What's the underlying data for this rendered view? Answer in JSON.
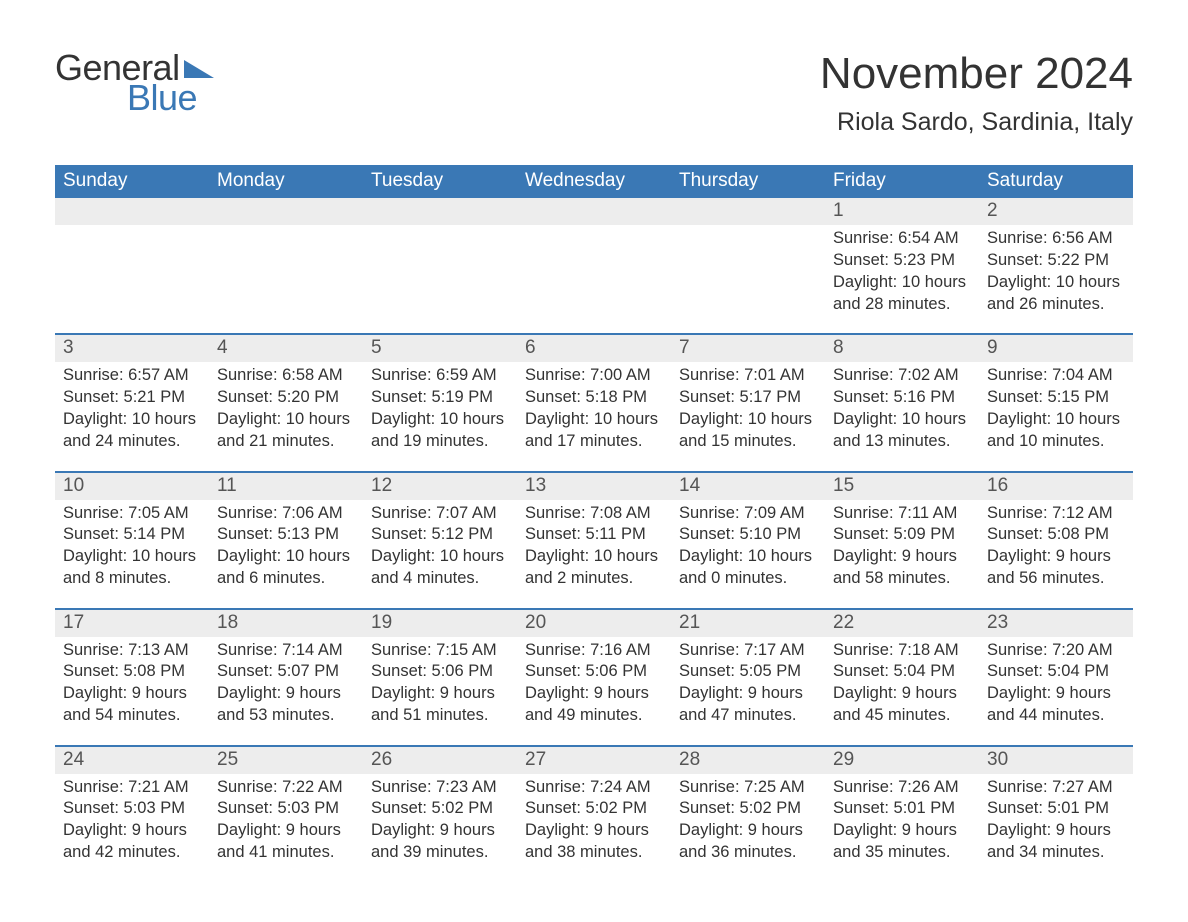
{
  "brand": {
    "name_part1": "General",
    "name_part2": "Blue",
    "accent_color": "#3a78b5",
    "text_color": "#333333"
  },
  "header": {
    "month_title": "November 2024",
    "location": "Riola Sardo, Sardinia, Italy"
  },
  "calendar": {
    "type": "table",
    "background_color": "#ffffff",
    "header_bg": "#3a78b5",
    "header_text_color": "#ffffff",
    "daynum_band_bg": "#ededed",
    "row_divider_color": "#3a78b5",
    "body_text_color": "#333333",
    "weekday_fontsize": 19,
    "daynum_fontsize": 19,
    "body_fontsize": 16.5,
    "columns": [
      "Sunday",
      "Monday",
      "Tuesday",
      "Wednesday",
      "Thursday",
      "Friday",
      "Saturday"
    ],
    "weeks": [
      [
        null,
        null,
        null,
        null,
        null,
        {
          "n": "1",
          "sr": "Sunrise: 6:54 AM",
          "ss": "Sunset: 5:23 PM",
          "d1": "Daylight: 10 hours",
          "d2": "and 28 minutes."
        },
        {
          "n": "2",
          "sr": "Sunrise: 6:56 AM",
          "ss": "Sunset: 5:22 PM",
          "d1": "Daylight: 10 hours",
          "d2": "and 26 minutes."
        }
      ],
      [
        {
          "n": "3",
          "sr": "Sunrise: 6:57 AM",
          "ss": "Sunset: 5:21 PM",
          "d1": "Daylight: 10 hours",
          "d2": "and 24 minutes."
        },
        {
          "n": "4",
          "sr": "Sunrise: 6:58 AM",
          "ss": "Sunset: 5:20 PM",
          "d1": "Daylight: 10 hours",
          "d2": "and 21 minutes."
        },
        {
          "n": "5",
          "sr": "Sunrise: 6:59 AM",
          "ss": "Sunset: 5:19 PM",
          "d1": "Daylight: 10 hours",
          "d2": "and 19 minutes."
        },
        {
          "n": "6",
          "sr": "Sunrise: 7:00 AM",
          "ss": "Sunset: 5:18 PM",
          "d1": "Daylight: 10 hours",
          "d2": "and 17 minutes."
        },
        {
          "n": "7",
          "sr": "Sunrise: 7:01 AM",
          "ss": "Sunset: 5:17 PM",
          "d1": "Daylight: 10 hours",
          "d2": "and 15 minutes."
        },
        {
          "n": "8",
          "sr": "Sunrise: 7:02 AM",
          "ss": "Sunset: 5:16 PM",
          "d1": "Daylight: 10 hours",
          "d2": "and 13 minutes."
        },
        {
          "n": "9",
          "sr": "Sunrise: 7:04 AM",
          "ss": "Sunset: 5:15 PM",
          "d1": "Daylight: 10 hours",
          "d2": "and 10 minutes."
        }
      ],
      [
        {
          "n": "10",
          "sr": "Sunrise: 7:05 AM",
          "ss": "Sunset: 5:14 PM",
          "d1": "Daylight: 10 hours",
          "d2": "and 8 minutes."
        },
        {
          "n": "11",
          "sr": "Sunrise: 7:06 AM",
          "ss": "Sunset: 5:13 PM",
          "d1": "Daylight: 10 hours",
          "d2": "and 6 minutes."
        },
        {
          "n": "12",
          "sr": "Sunrise: 7:07 AM",
          "ss": "Sunset: 5:12 PM",
          "d1": "Daylight: 10 hours",
          "d2": "and 4 minutes."
        },
        {
          "n": "13",
          "sr": "Sunrise: 7:08 AM",
          "ss": "Sunset: 5:11 PM",
          "d1": "Daylight: 10 hours",
          "d2": "and 2 minutes."
        },
        {
          "n": "14",
          "sr": "Sunrise: 7:09 AM",
          "ss": "Sunset: 5:10 PM",
          "d1": "Daylight: 10 hours",
          "d2": "and 0 minutes."
        },
        {
          "n": "15",
          "sr": "Sunrise: 7:11 AM",
          "ss": "Sunset: 5:09 PM",
          "d1": "Daylight: 9 hours",
          "d2": "and 58 minutes."
        },
        {
          "n": "16",
          "sr": "Sunrise: 7:12 AM",
          "ss": "Sunset: 5:08 PM",
          "d1": "Daylight: 9 hours",
          "d2": "and 56 minutes."
        }
      ],
      [
        {
          "n": "17",
          "sr": "Sunrise: 7:13 AM",
          "ss": "Sunset: 5:08 PM",
          "d1": "Daylight: 9 hours",
          "d2": "and 54 minutes."
        },
        {
          "n": "18",
          "sr": "Sunrise: 7:14 AM",
          "ss": "Sunset: 5:07 PM",
          "d1": "Daylight: 9 hours",
          "d2": "and 53 minutes."
        },
        {
          "n": "19",
          "sr": "Sunrise: 7:15 AM",
          "ss": "Sunset: 5:06 PM",
          "d1": "Daylight: 9 hours",
          "d2": "and 51 minutes."
        },
        {
          "n": "20",
          "sr": "Sunrise: 7:16 AM",
          "ss": "Sunset: 5:06 PM",
          "d1": "Daylight: 9 hours",
          "d2": "and 49 minutes."
        },
        {
          "n": "21",
          "sr": "Sunrise: 7:17 AM",
          "ss": "Sunset: 5:05 PM",
          "d1": "Daylight: 9 hours",
          "d2": "and 47 minutes."
        },
        {
          "n": "22",
          "sr": "Sunrise: 7:18 AM",
          "ss": "Sunset: 5:04 PM",
          "d1": "Daylight: 9 hours",
          "d2": "and 45 minutes."
        },
        {
          "n": "23",
          "sr": "Sunrise: 7:20 AM",
          "ss": "Sunset: 5:04 PM",
          "d1": "Daylight: 9 hours",
          "d2": "and 44 minutes."
        }
      ],
      [
        {
          "n": "24",
          "sr": "Sunrise: 7:21 AM",
          "ss": "Sunset: 5:03 PM",
          "d1": "Daylight: 9 hours",
          "d2": "and 42 minutes."
        },
        {
          "n": "25",
          "sr": "Sunrise: 7:22 AM",
          "ss": "Sunset: 5:03 PM",
          "d1": "Daylight: 9 hours",
          "d2": "and 41 minutes."
        },
        {
          "n": "26",
          "sr": "Sunrise: 7:23 AM",
          "ss": "Sunset: 5:02 PM",
          "d1": "Daylight: 9 hours",
          "d2": "and 39 minutes."
        },
        {
          "n": "27",
          "sr": "Sunrise: 7:24 AM",
          "ss": "Sunset: 5:02 PM",
          "d1": "Daylight: 9 hours",
          "d2": "and 38 minutes."
        },
        {
          "n": "28",
          "sr": "Sunrise: 7:25 AM",
          "ss": "Sunset: 5:02 PM",
          "d1": "Daylight: 9 hours",
          "d2": "and 36 minutes."
        },
        {
          "n": "29",
          "sr": "Sunrise: 7:26 AM",
          "ss": "Sunset: 5:01 PM",
          "d1": "Daylight: 9 hours",
          "d2": "and 35 minutes."
        },
        {
          "n": "30",
          "sr": "Sunrise: 7:27 AM",
          "ss": "Sunset: 5:01 PM",
          "d1": "Daylight: 9 hours",
          "d2": "and 34 minutes."
        }
      ]
    ]
  }
}
